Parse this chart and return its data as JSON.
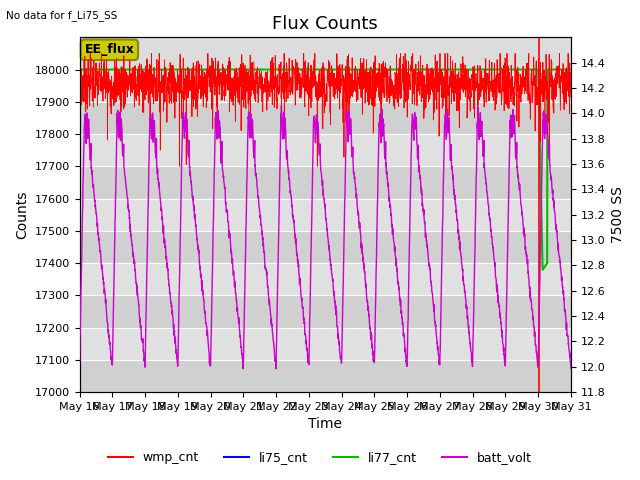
{
  "title": "Flux Counts",
  "top_left_note": "No data for f_Li75_SS",
  "xlabel": "Time",
  "ylabel_left": "Counts",
  "ylabel_right": "7500 SS",
  "ylim_left": [
    17000,
    18100
  ],
  "ylim_right": [
    11.8,
    14.6
  ],
  "background_color": "#ffffff",
  "plot_bg_color": "#dcdcdc",
  "legend_entries": [
    "wmp_cnt",
    "li75_cnt",
    "li77_cnt",
    "batt_volt"
  ],
  "legend_colors": [
    "#ff0000",
    "#0000ff",
    "#00bb00",
    "#cc00cc"
  ],
  "ee_flux_box_facecolor": "#cccc00",
  "ee_flux_box_edgecolor": "#888800",
  "ee_flux_text": "EE_flux",
  "x_tick_labels": [
    "May 16",
    "May 17",
    "May 18",
    "May 19",
    "May 20",
    "May 21",
    "May 22",
    "May 23",
    "May 24",
    "May 25",
    "May 26",
    "May 27",
    "May 28",
    "May 29",
    "May 30",
    "May 31"
  ],
  "left_yticks": [
    17000,
    17100,
    17200,
    17300,
    17400,
    17500,
    17600,
    17700,
    17800,
    17900,
    18000
  ],
  "right_yticks": [
    11.8,
    12.0,
    12.2,
    12.4,
    12.6,
    12.8,
    13.0,
    13.2,
    13.4,
    13.6,
    13.8,
    14.0,
    14.2,
    14.4
  ],
  "wmp_cnt_base": 17960,
  "wmp_cnt_noise_amp": 40,
  "wmp_cnt_spike_down_amp": 100,
  "li77_value": 18000,
  "grid_color": "#ffffff",
  "title_fontsize": 13,
  "axis_label_fontsize": 10,
  "tick_fontsize": 8,
  "figwidth": 6.4,
  "figheight": 4.8,
  "dpi": 100
}
